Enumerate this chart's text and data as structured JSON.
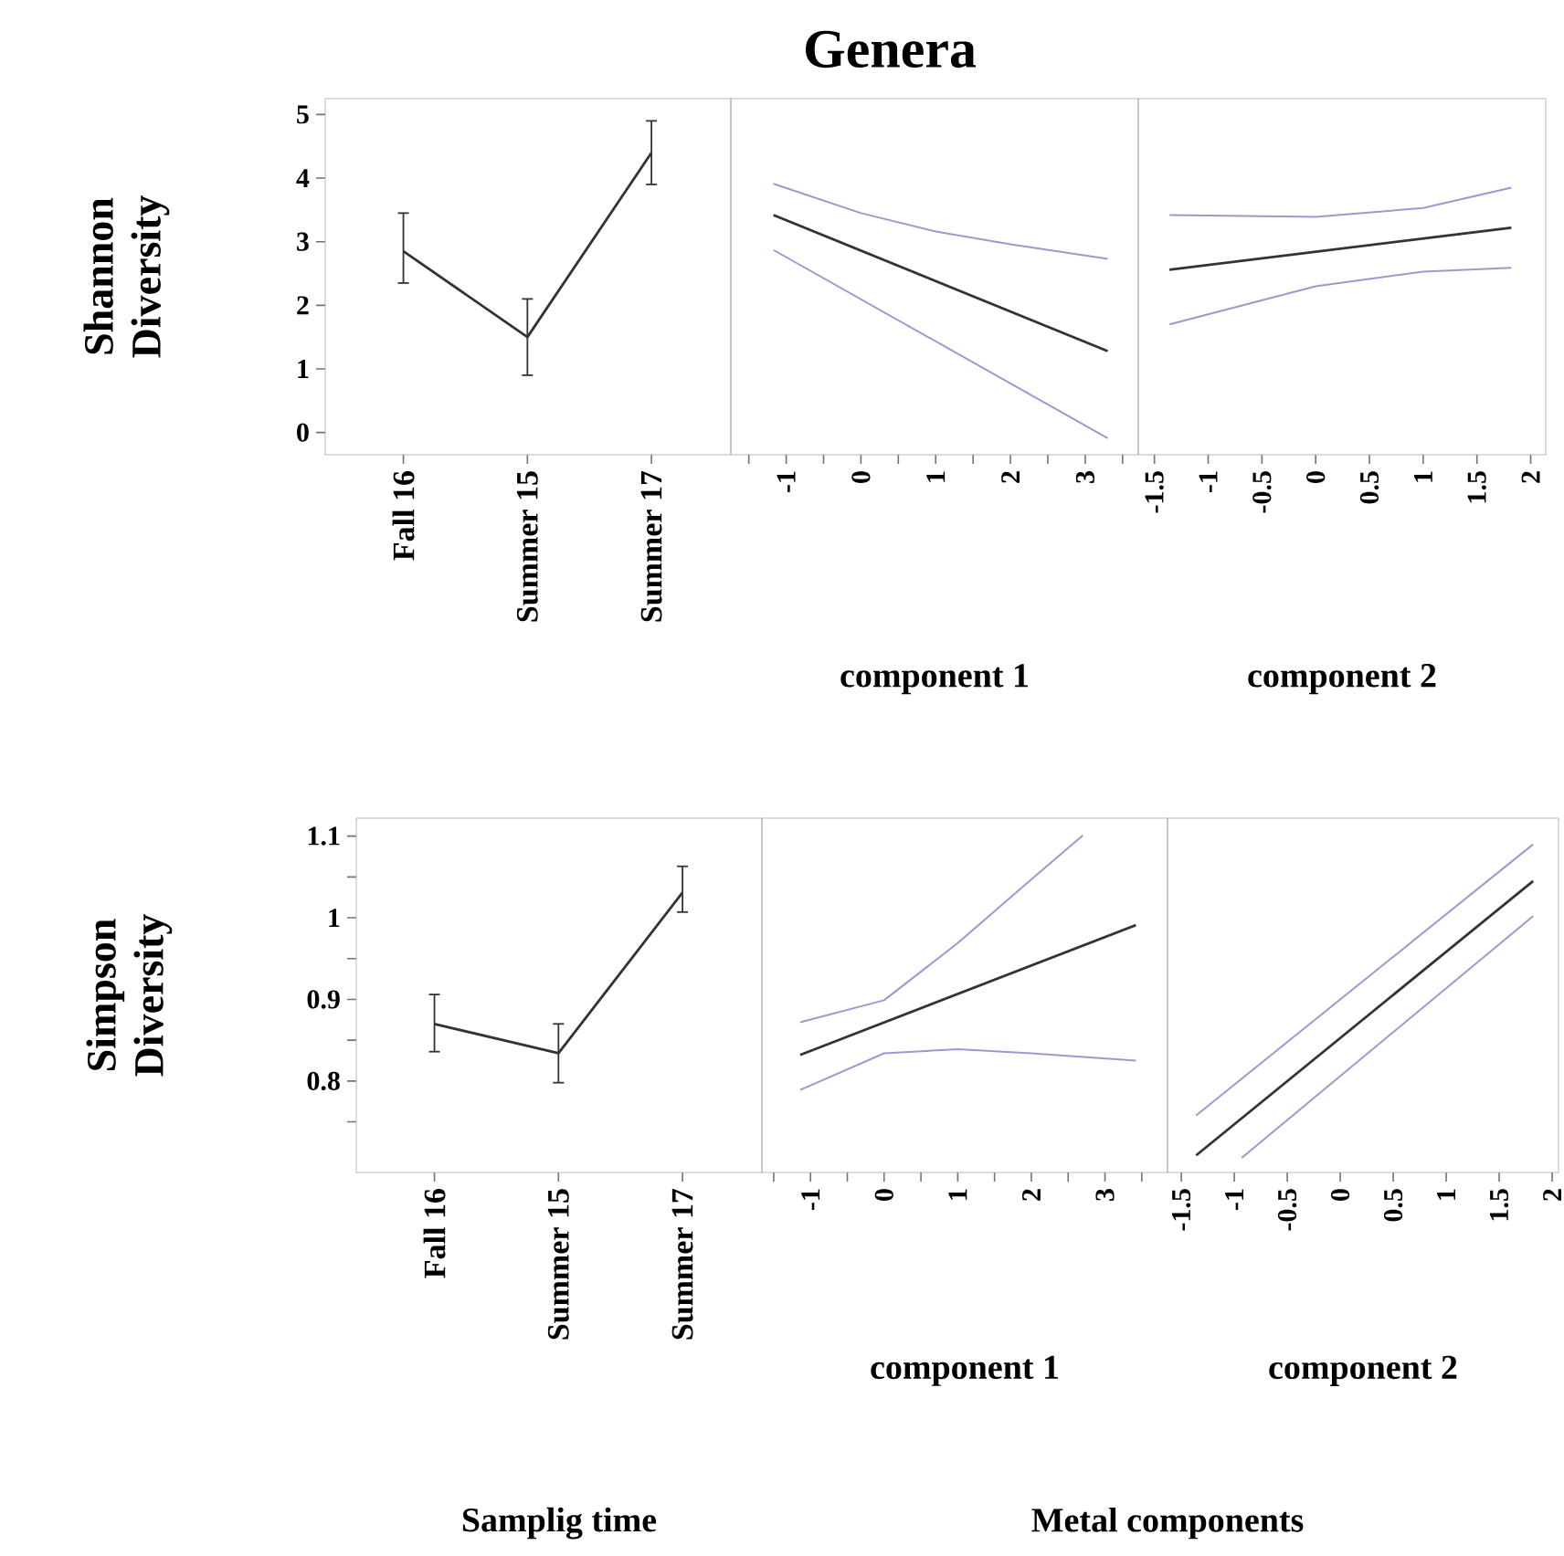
{
  "chart_data": [
    {
      "type": "line",
      "ylabel": "Shannon Diversity",
      "categories": [
        "Fall 16",
        "Summer 15",
        "Summer 17"
      ],
      "ylim": [
        -0.35,
        5.25
      ],
      "yticks": [
        0,
        1,
        2,
        3,
        4,
        5
      ],
      "marker": "none",
      "series": [
        {
          "color": "#333333",
          "values": [
            2.85,
            1.5,
            4.4
          ],
          "errors": [
            [
              2.35,
              3.45
            ],
            [
              0.9,
              2.1
            ],
            [
              3.9,
              4.9
            ]
          ]
        }
      ]
    },
    {
      "type": "line",
      "title": "Genera",
      "xlabel": "component 1",
      "xlim": [
        -1.74,
        3.71
      ],
      "xticks": [
        {
          "value": -1.5,
          "label": null
        },
        -1,
        {
          "value": -0.5,
          "label": null
        },
        0,
        {
          "value": 0.5,
          "label": null
        },
        1,
        {
          "value": 1.5,
          "label": null
        },
        2,
        {
          "value": 2.5,
          "label": null
        },
        3,
        {
          "value": 3.5,
          "label": null
        }
      ],
      "ylim": [
        -0.35,
        5.25
      ],
      "tick_labels": "x",
      "marker": "none",
      "series": [
        {
          "color": "#333333",
          "x": [
            -1.17,
            3.3
          ],
          "values": [
            3.42,
            1.28
          ]
        },
        {
          "color": "#9a9ad0",
          "x": [
            -1.17,
            0,
            1,
            2,
            3.3
          ],
          "values": [
            3.91,
            3.45,
            3.16,
            2.96,
            2.73
          ]
        },
        {
          "color": "#9a9ad0",
          "x": [
            -1.17,
            3.3
          ],
          "values": [
            2.87,
            -0.09
          ]
        }
      ]
    },
    {
      "type": "line",
      "xlabel": "component 2",
      "xlim": [
        -1.65,
        2.14
      ],
      "xticks": [
        -1.5,
        -1,
        -0.5,
        0,
        0.5,
        1,
        1.5,
        2
      ],
      "ylim": [
        -0.35,
        5.25
      ],
      "tick_labels": "x",
      "marker": "none",
      "series": [
        {
          "color": "#333333",
          "x": [
            -1.36,
            1.82
          ],
          "values": [
            2.56,
            3.22
          ]
        },
        {
          "color": "#9a9ad0",
          "x": [
            -1.36,
            0,
            1,
            1.82
          ],
          "values": [
            3.42,
            3.39,
            3.53,
            3.85
          ]
        },
        {
          "color": "#9a9ad0",
          "x": [
            -1.36,
            0,
            1,
            1.82
          ],
          "values": [
            1.7,
            2.3,
            2.53,
            2.59
          ]
        }
      ]
    },
    {
      "type": "line",
      "ylabel": "Simpson Diversity",
      "xlabel": "Samplig time",
      "categories": [
        "Fall 16",
        "Summer 15",
        "Summer 17"
      ],
      "ylim": [
        0.688,
        1.122
      ],
      "yticks": [
        {
          "value": 0.75,
          "label": null
        },
        0.8,
        {
          "value": 0.85,
          "label": null
        },
        0.9,
        {
          "value": 0.95,
          "label": null
        },
        1,
        {
          "value": 1.05,
          "label": null
        },
        1.1
      ],
      "marker": "none",
      "series": [
        {
          "color": "#333333",
          "values": [
            0.87,
            0.834,
            1.031
          ],
          "errors": [
            [
              0.836,
              0.906
            ],
            [
              0.798,
              0.87
            ],
            [
              1.007,
              1.063
            ]
          ]
        }
      ]
    },
    {
      "type": "line",
      "xlabel": "component 1",
      "annotations": [
        "Metal components"
      ],
      "xlim": [
        -1.66,
        3.85
      ],
      "xticks": [
        {
          "value": -1.5,
          "label": null
        },
        -1,
        {
          "value": -0.5,
          "label": null
        },
        0,
        {
          "value": 0.5,
          "label": null
        },
        1,
        {
          "value": 1.5,
          "label": null
        },
        2,
        {
          "value": 2.5,
          "label": null
        },
        3,
        {
          "value": 3.5,
          "label": null
        }
      ],
      "ylim": [
        0.688,
        1.122
      ],
      "tick_labels": "x",
      "marker": "none",
      "series": [
        {
          "color": "#333333",
          "x": [
            -1.14,
            3.42
          ],
          "values": [
            0.832,
            0.991
          ]
        },
        {
          "color": "#9a9ad0",
          "x": [
            -1.14,
            0,
            1,
            2,
            2.7
          ],
          "values": [
            0.872,
            0.899,
            0.969,
            1.047,
            1.101
          ]
        },
        {
          "color": "#9a9ad0",
          "x": [
            -1.14,
            0,
            1,
            2,
            3.42
          ],
          "values": [
            0.789,
            0.834,
            0.839,
            0.834,
            0.825
          ]
        }
      ]
    },
    {
      "type": "line",
      "xlabel": "component 2",
      "xlim": [
        -1.63,
        2.06
      ],
      "xticks": [
        -1.5,
        -1,
        -0.5,
        0,
        0.5,
        1,
        1.5,
        2
      ],
      "ylim": [
        0.688,
        1.122
      ],
      "tick_labels": "x",
      "marker": "none",
      "series": [
        {
          "color": "#333333",
          "x": [
            -1.36,
            1.82
          ],
          "values": [
            0.709,
            1.045
          ]
        },
        {
          "color": "#9a9ad0",
          "x": [
            -1.36,
            1.82
          ],
          "values": [
            0.758,
            1.09
          ]
        },
        {
          "color": "#9a9ad0",
          "x": [
            -0.93,
            1.82
          ],
          "values": [
            0.706,
            1.002
          ]
        }
      ]
    }
  ]
}
